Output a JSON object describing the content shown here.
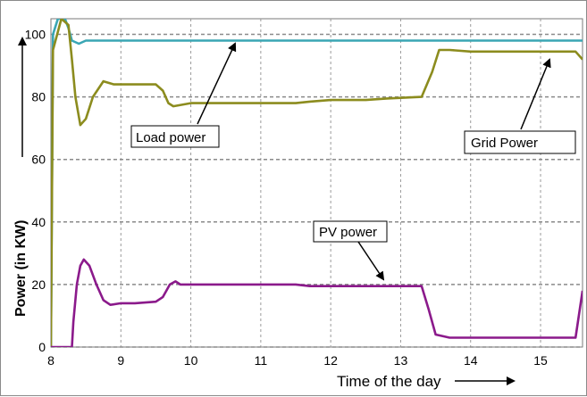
{
  "chart_data": {
    "type": "line",
    "xlabel": "Time of the day",
    "ylabel": "Power (in KW)",
    "xlim": [
      8,
      15.6
    ],
    "ylim": [
      0,
      105
    ],
    "x_ticks": [
      "8",
      "9",
      "10",
      "11",
      "12",
      "13",
      "14",
      "15"
    ],
    "y_ticks": [
      "0",
      "20",
      "40",
      "60",
      "80",
      "100"
    ],
    "grid": true,
    "annotations": [
      {
        "text": "Load power",
        "series": "load"
      },
      {
        "text": "Grid Power",
        "series": "grid"
      },
      {
        "text": "PV power",
        "series": "pv"
      }
    ],
    "series": [
      {
        "id": "load",
        "color": "#3aa6b4",
        "points": [
          [
            8.0,
            0
          ],
          [
            8.03,
            100
          ],
          [
            8.1,
            105
          ],
          [
            8.2,
            105
          ],
          [
            8.25,
            102
          ],
          [
            8.3,
            98
          ],
          [
            8.4,
            97
          ],
          [
            8.5,
            98
          ],
          [
            9.0,
            98
          ],
          [
            10.0,
            98
          ],
          [
            11.0,
            98
          ],
          [
            12.0,
            98
          ],
          [
            13.0,
            98
          ],
          [
            14.0,
            98
          ],
          [
            15.0,
            98
          ],
          [
            15.6,
            98
          ]
        ]
      },
      {
        "id": "grid",
        "color": "#8c8c1e",
        "points": [
          [
            8.0,
            0
          ],
          [
            8.03,
            95
          ],
          [
            8.15,
            105
          ],
          [
            8.25,
            103
          ],
          [
            8.3,
            92
          ],
          [
            8.35,
            80
          ],
          [
            8.42,
            71
          ],
          [
            8.5,
            73
          ],
          [
            8.6,
            80
          ],
          [
            8.75,
            85
          ],
          [
            8.9,
            84
          ],
          [
            9.0,
            84
          ],
          [
            9.5,
            84
          ],
          [
            9.6,
            82
          ],
          [
            9.68,
            78
          ],
          [
            9.75,
            77
          ],
          [
            10.0,
            78
          ],
          [
            10.5,
            78
          ],
          [
            11.0,
            78
          ],
          [
            11.5,
            78
          ],
          [
            11.7,
            78.5
          ],
          [
            12.0,
            79
          ],
          [
            12.5,
            79
          ],
          [
            12.8,
            79.5
          ],
          [
            13.3,
            80
          ],
          [
            13.45,
            88
          ],
          [
            13.55,
            95
          ],
          [
            13.7,
            95
          ],
          [
            14.0,
            94.5
          ],
          [
            15.0,
            94.5
          ],
          [
            15.5,
            94.5
          ],
          [
            15.6,
            92
          ]
        ]
      },
      {
        "id": "pv",
        "color": "#8b1a8b",
        "points": [
          [
            8.0,
            0
          ],
          [
            8.3,
            0
          ],
          [
            8.32,
            8
          ],
          [
            8.37,
            20
          ],
          [
            8.42,
            26
          ],
          [
            8.47,
            28
          ],
          [
            8.55,
            26
          ],
          [
            8.65,
            20
          ],
          [
            8.75,
            15
          ],
          [
            8.85,
            13.5
          ],
          [
            9.0,
            14
          ],
          [
            9.2,
            14
          ],
          [
            9.5,
            14.5
          ],
          [
            9.6,
            16
          ],
          [
            9.7,
            20
          ],
          [
            9.78,
            21
          ],
          [
            9.85,
            20
          ],
          [
            10.0,
            20
          ],
          [
            10.5,
            20
          ],
          [
            11.0,
            20
          ],
          [
            11.5,
            20
          ],
          [
            11.7,
            19.5
          ],
          [
            12.0,
            19.5
          ],
          [
            12.5,
            19.5
          ],
          [
            13.0,
            19.5
          ],
          [
            13.3,
            19.5
          ],
          [
            13.4,
            12
          ],
          [
            13.5,
            4
          ],
          [
            13.7,
            3
          ],
          [
            14.0,
            3
          ],
          [
            15.0,
            3
          ],
          [
            15.5,
            3
          ],
          [
            15.6,
            18
          ]
        ]
      }
    ]
  }
}
